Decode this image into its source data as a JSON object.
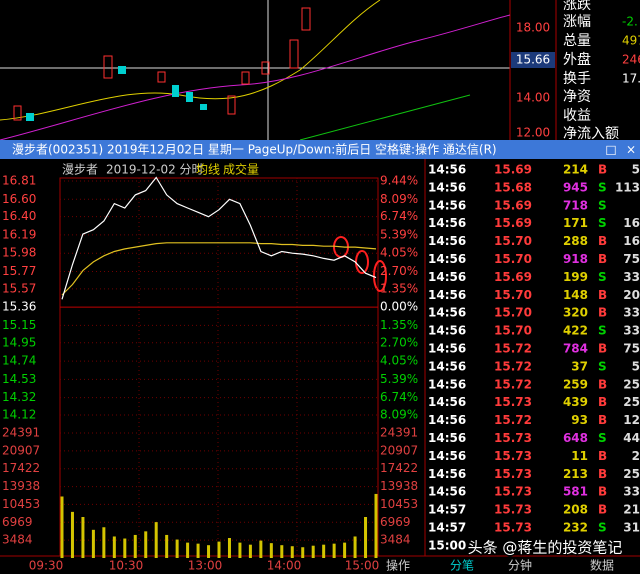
{
  "top_panel": {
    "price_labels": [
      "18.00",
      "15.66",
      "14.00",
      "12.00"
    ],
    "info": [
      {
        "label": "涨跌",
        "value": ""
      },
      {
        "label": "涨幅",
        "value": "-2."
      },
      {
        "label": "总量",
        "value": "497"
      },
      {
        "label": "外盘",
        "value": "246"
      },
      {
        "label": "换手",
        "value": "17."
      },
      {
        "label": "净资",
        "value": ""
      },
      {
        "label": "收益",
        "value": ""
      },
      {
        "label": "净流入额",
        "value": ""
      }
    ]
  },
  "window": {
    "title": "漫步者(002351) 2019年12月02日 星期一 PageUp/Down:前后日 空格键:操作 通达信(R)",
    "buttons": [
      "□",
      "×"
    ]
  },
  "intraday": {
    "name": "漫步者",
    "date": "2019-12-02 分时",
    "avg_label": "均线",
    "vol_label": "成交量",
    "price_ticks": [
      {
        "value": 16.81,
        "label": "16.81"
      },
      {
        "value": 16.6,
        "label": "16.60"
      },
      {
        "value": 16.4,
        "label": "16.40"
      },
      {
        "value": 16.19,
        "label": "16.19"
      },
      {
        "value": 15.98,
        "label": "15.98"
      },
      {
        "value": 15.77,
        "label": "15.77"
      },
      {
        "value": 15.57,
        "label": "15.57"
      },
      {
        "value": 15.36,
        "label": "15.36"
      },
      {
        "value": 15.15,
        "label": "15.15"
      },
      {
        "value": 14.95,
        "label": "14.95"
      },
      {
        "value": 14.74,
        "label": "14.74"
      },
      {
        "value": 14.53,
        "label": "14.53"
      },
      {
        "value": 14.32,
        "label": "14.32"
      },
      {
        "value": 14.12,
        "label": "14.12"
      }
    ],
    "pct_labels": [
      "9.44%",
      "8.09%",
      "6.74%",
      "5.39%",
      "4.05%",
      "2.70%",
      "1.35%",
      "0.00%",
      "1.35%",
      "2.70%",
      "4.05%",
      "5.39%",
      "6.74%",
      "8.09%"
    ],
    "volume_ticks": [
      24391,
      20907,
      17422,
      13938,
      10453,
      6969,
      3484
    ],
    "time_labels": [
      "09:30",
      "10:30",
      "13:00",
      "14:00",
      "15:00"
    ],
    "price": [
      15.45,
      15.85,
      16.2,
      16.25,
      16.35,
      16.55,
      16.5,
      16.65,
      16.7,
      16.85,
      16.65,
      16.55,
      16.5,
      16.45,
      16.4,
      16.48,
      16.6,
      16.55,
      16.3,
      16.0,
      15.95,
      16.0,
      15.98,
      15.97,
      15.95,
      15.92,
      15.9,
      15.95,
      15.88,
      15.75,
      15.7
    ],
    "average": [
      15.5,
      15.62,
      15.78,
      15.88,
      15.95,
      16.0,
      16.03,
      16.05,
      16.07,
      16.09,
      16.1,
      16.1,
      16.1,
      16.1,
      16.1,
      16.1,
      16.1,
      16.1,
      16.1,
      16.09,
      16.09,
      16.08,
      16.08,
      16.07,
      16.07,
      16.06,
      16.06,
      16.05,
      16.05,
      16.04,
      16.03
    ],
    "volume": [
      12000,
      9000,
      8000,
      5500,
      6000,
      4200,
      3800,
      4500,
      5200,
      7000,
      4500,
      3600,
      3000,
      2800,
      2500,
      3200,
      3900,
      3000,
      2600,
      3400,
      2900,
      2500,
      2300,
      2100,
      2400,
      2600,
      2800,
      3000,
      4200,
      8000,
      12500
    ]
  },
  "trades": {
    "rows": [
      [
        "14:56",
        "15.69",
        "214",
        "B",
        "5"
      ],
      [
        "14:56",
        "15.68",
        "945",
        "S",
        "113"
      ],
      [
        "14:56",
        "15.69",
        "718",
        "S",
        ""
      ],
      [
        "14:56",
        "15.69",
        "171",
        "S",
        "16"
      ],
      [
        "14:56",
        "15.70",
        "288",
        "B",
        "16"
      ],
      [
        "14:56",
        "15.70",
        "918",
        "B",
        "75"
      ],
      [
        "14:56",
        "15.69",
        "199",
        "S",
        "33"
      ],
      [
        "14:56",
        "15.70",
        "148",
        "B",
        "20"
      ],
      [
        "14:56",
        "15.70",
        "320",
        "B",
        "33"
      ],
      [
        "14:56",
        "15.70",
        "422",
        "S",
        "33"
      ],
      [
        "14:56",
        "15.72",
        "784",
        "B",
        "75"
      ],
      [
        "14:56",
        "15.72",
        "37",
        "S",
        "5"
      ],
      [
        "14:56",
        "15.72",
        "259",
        "B",
        "25"
      ],
      [
        "14:56",
        "15.73",
        "439",
        "B",
        "25"
      ],
      [
        "14:56",
        "15.72",
        "93",
        "B",
        "12"
      ],
      [
        "14:56",
        "15.73",
        "648",
        "S",
        "44"
      ],
      [
        "14:56",
        "15.73",
        "11",
        "B",
        "2"
      ],
      [
        "14:56",
        "15.73",
        "213",
        "B",
        "25"
      ],
      [
        "14:56",
        "15.73",
        "581",
        "B",
        "33"
      ],
      [
        "14:57",
        "15.73",
        "208",
        "B",
        "21"
      ],
      [
        "14:57",
        "15.73",
        "232",
        "S",
        "31"
      ],
      [
        "15:00",
        "",
        "",
        "",
        ""
      ]
    ]
  },
  "tabs": [
    "操作",
    "分笔",
    "分钟",
    "数据"
  ],
  "watermark": "头条 @蒋生的投资笔记"
}
